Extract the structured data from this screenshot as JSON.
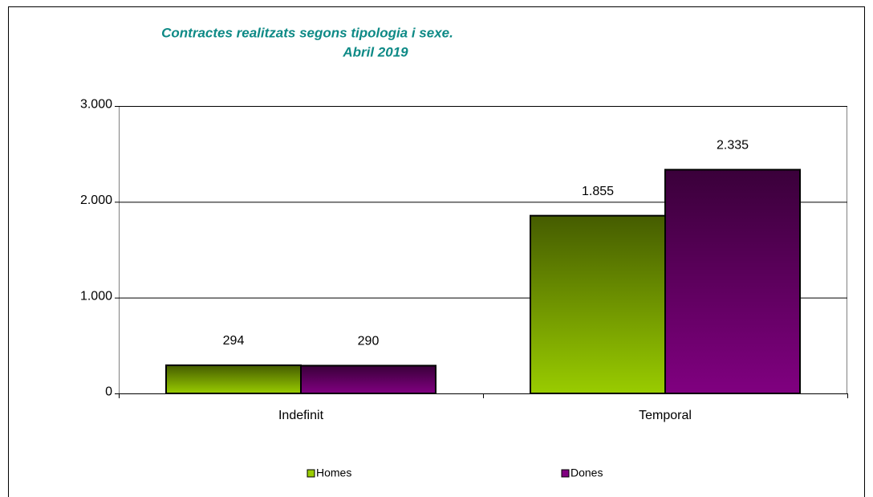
{
  "chart_data": {
    "type": "bar",
    "title": "Contractes realitzats segons tipologia i sexe.",
    "subtitle": "Abril 2019",
    "categories": [
      "Indefinit",
      "Temporal"
    ],
    "series": [
      {
        "name": "Homes",
        "color": "#99cc00",
        "values": [
          294,
          1855
        ],
        "value_labels": [
          "294",
          "1.855"
        ]
      },
      {
        "name": "Dones",
        "color": "#800080",
        "values": [
          290,
          2335
        ],
        "value_labels": [
          "290",
          "2.335"
        ]
      }
    ],
    "ylim": [
      0,
      3000
    ],
    "yticks": [
      0,
      {
        "value": 1000,
        "label": "1.000"
      },
      {
        "value": 2000,
        "label": "2.000"
      },
      {
        "value": 3000,
        "label": "3.000"
      }
    ],
    "grid": true,
    "legend": "bottom"
  }
}
